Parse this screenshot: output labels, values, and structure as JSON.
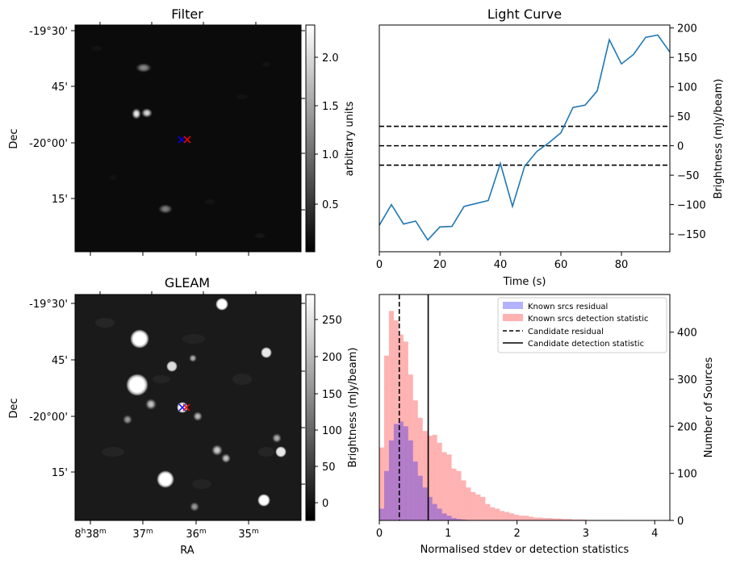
{
  "panels": {
    "filter": {
      "title": "Filter",
      "ylabel": "Dec",
      "dec_ticks": [
        "-19°30'",
        "45'",
        "-20°00'",
        "15'"
      ],
      "colorbar_label": "arbitrary units",
      "colorbar_ticks": [
        "2.0",
        "1.5",
        "1.0",
        "0.5"
      ],
      "colorbar_range": [
        0.05,
        2.3
      ]
    },
    "gleam": {
      "title": "GLEAM",
      "ylabel": "Dec",
      "xlabel": "RA",
      "dec_ticks": [
        "-19°30'",
        "45'",
        "-20°00'",
        "15'"
      ],
      "ra_ticks": [
        "8h38m",
        "37m",
        "36m",
        "35m"
      ],
      "colorbar_label": "Brightness (mJy/beam)",
      "colorbar_ticks": [
        "250",
        "200",
        "150",
        "100",
        "50",
        "0"
      ],
      "colorbar_range": [
        -20,
        280
      ]
    }
  },
  "markers": {
    "candidate_colors": [
      "#0000ff",
      "#ff0000"
    ]
  },
  "chart_data": [
    {
      "type": "line",
      "title": "Light Curve",
      "xlabel": "Time (s)",
      "ylabel": "Brightness (mJy/beam)",
      "xlim": [
        0,
        96
      ],
      "ylim": [
        -180,
        205
      ],
      "x_ticks": [
        0,
        20,
        40,
        60,
        80
      ],
      "y_ticks": [
        -150,
        -100,
        -50,
        0,
        50,
        100,
        150,
        200
      ],
      "series": [
        {
          "color": "#1f77b4",
          "x": [
            0,
            4,
            8,
            12,
            16,
            20,
            24,
            28,
            32,
            36,
            40,
            44,
            48,
            52,
            56,
            60,
            64,
            68,
            72,
            76,
            80,
            84,
            88,
            92,
            96
          ],
          "y": [
            -135,
            -100,
            -133,
            -128,
            -160,
            -138,
            -137,
            -103,
            -98,
            -93,
            -30,
            -103,
            -35,
            -10,
            5,
            22,
            65,
            69,
            93,
            180,
            139,
            155,
            184,
            188,
            159
          ]
        }
      ],
      "hlines": [
        {
          "y": 33,
          "style": "dashed",
          "color": "#000000"
        },
        {
          "y": 0,
          "style": "dashed",
          "color": "#000000"
        },
        {
          "y": -33,
          "style": "dashed",
          "color": "#000000"
        }
      ]
    },
    {
      "type": "bar",
      "subtype": "histogram",
      "xlabel": "Normalised stdev or detection statistics",
      "ylabel": "Number of Sources",
      "xlim": [
        0,
        4.22
      ],
      "ylim": [
        0,
        480
      ],
      "x_ticks": [
        0,
        1,
        2,
        3,
        4
      ],
      "y_ticks": [
        0,
        100,
        200,
        300,
        400
      ],
      "bin_width": 0.07,
      "series": [
        {
          "name": "Known srcs residual",
          "color": "#0000ff",
          "alpha": 0.3,
          "bin_start": 0.0,
          "values": [
            25,
            105,
            170,
            205,
            210,
            200,
            170,
            125,
            95,
            70,
            50,
            35,
            25,
            15,
            10,
            5,
            3,
            2,
            1
          ]
        },
        {
          "name": "Known srcs detection statistic",
          "color": "#ff0000",
          "alpha": 0.3,
          "bin_start": 0.0,
          "values": [
            155,
            350,
            445,
            425,
            395,
            380,
            310,
            255,
            218,
            190,
            180,
            182,
            165,
            145,
            140,
            110,
            105,
            85,
            70,
            60,
            55,
            50,
            35,
            28,
            25,
            20,
            18,
            15,
            12,
            10,
            10,
            8,
            6,
            6,
            5,
            5,
            4,
            4,
            3,
            3,
            2,
            2,
            2,
            1,
            1,
            1,
            1,
            1,
            1,
            1,
            1
          ]
        }
      ],
      "vlines": [
        {
          "name": "Candidate residual",
          "x": 0.29,
          "style": "dashed",
          "color": "#000000"
        },
        {
          "name": "Candidate detection statistic",
          "x": 0.71,
          "style": "solid",
          "color": "#000000"
        }
      ],
      "legend_position": "upper right"
    }
  ]
}
